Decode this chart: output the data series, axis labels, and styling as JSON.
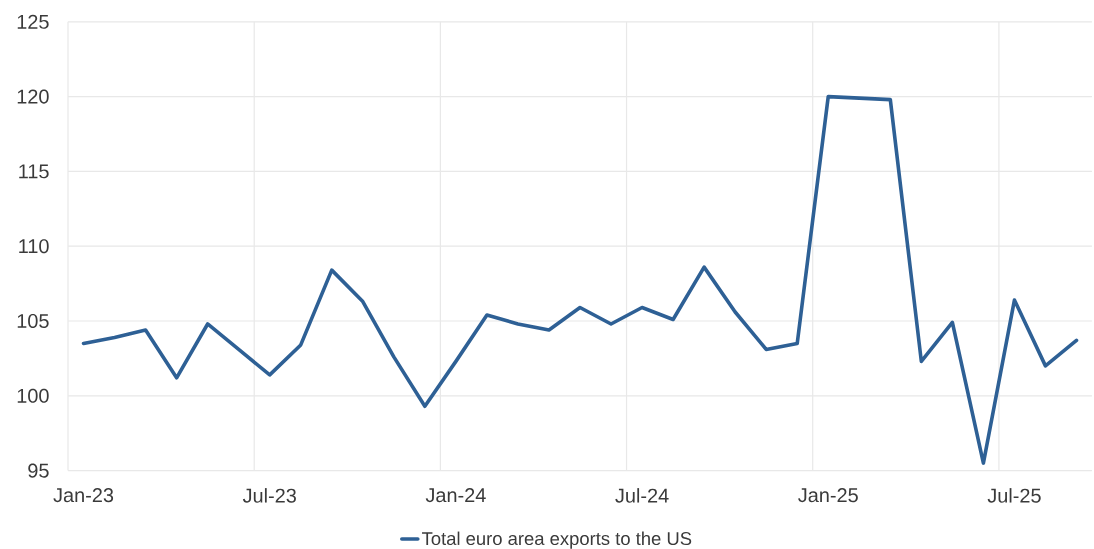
{
  "chart_data": {
    "type": "line",
    "categories": [
      "Jan-23",
      null,
      null,
      null,
      null,
      null,
      "Jul-23",
      null,
      null,
      null,
      null,
      null,
      "Jan-24",
      null,
      null,
      null,
      null,
      null,
      "Jul-24",
      null,
      null,
      null,
      null,
      null,
      "Jan-25",
      null,
      null,
      null,
      null,
      null,
      "Jul-25",
      null,
      null
    ],
    "series": [
      {
        "name": "Total euro area exports to the US",
        "color": "#2e6095",
        "values": [
          103.5,
          103.9,
          104.4,
          101.2,
          104.8,
          103.1,
          101.4,
          103.4,
          108.4,
          106.3,
          102.6,
          99.3,
          102.3,
          105.4,
          104.8,
          104.4,
          105.9,
          104.8,
          105.9,
          105.1,
          108.6,
          105.6,
          103.1,
          103.5,
          120.0,
          119.9,
          119.8,
          102.3,
          104.9,
          95.5,
          106.4,
          102.0,
          103.7
        ]
      }
    ],
    "ylim": [
      95,
      125
    ],
    "yticks": [
      95,
      100,
      105,
      110,
      115,
      120,
      125
    ],
    "grid": true,
    "legend": "bottom"
  }
}
